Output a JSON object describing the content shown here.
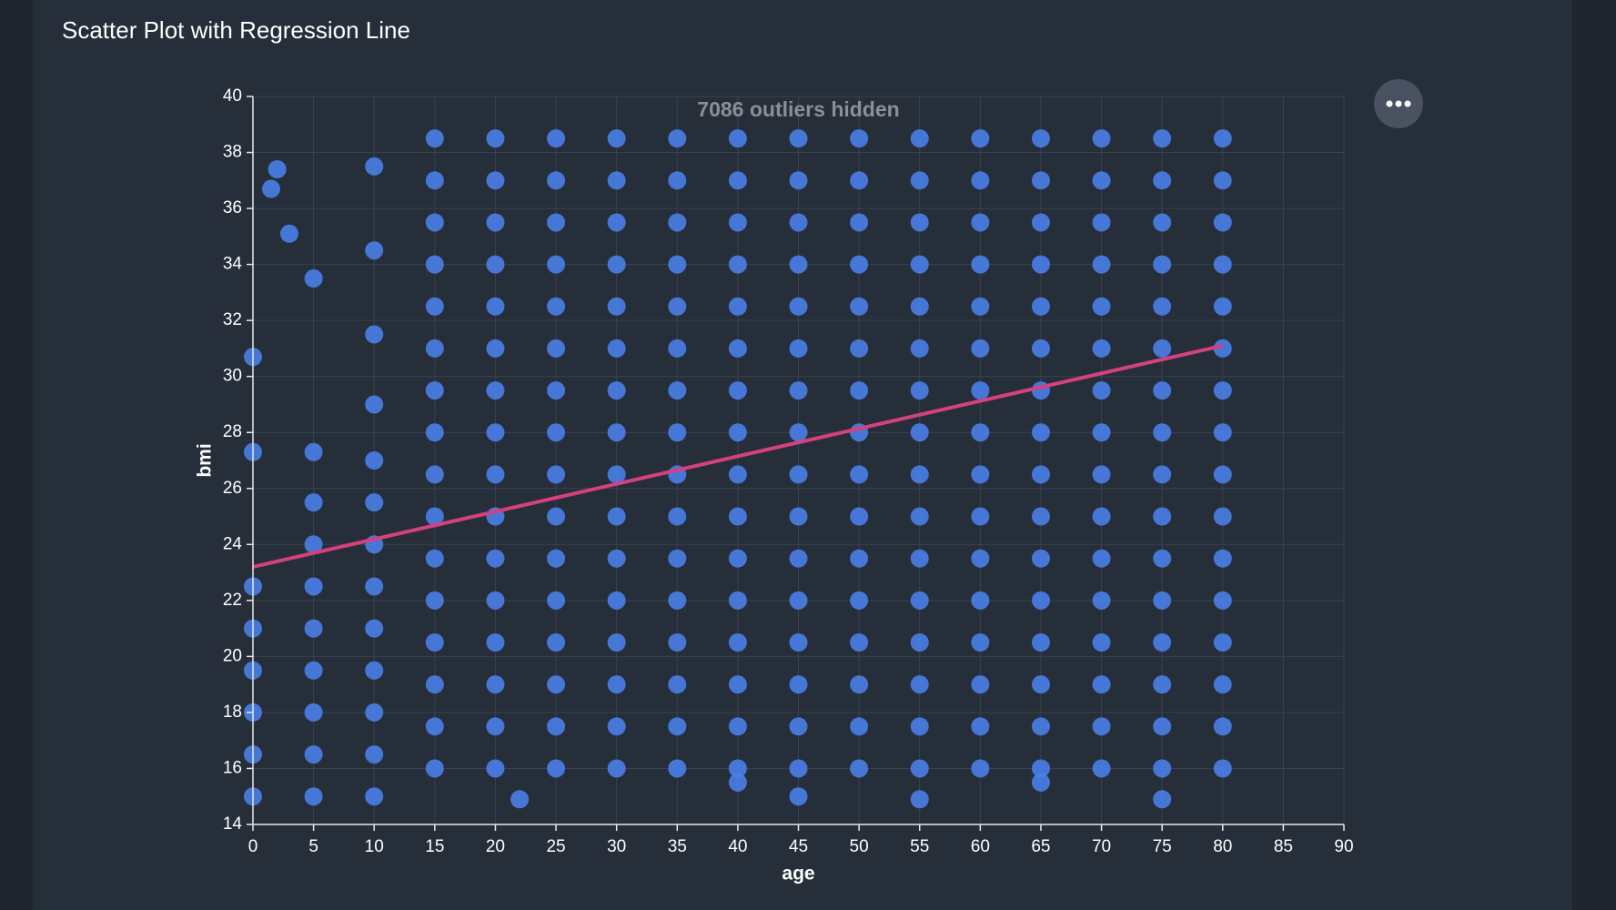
{
  "chart_data": {
    "type": "scatter",
    "title": "Scatter Plot with Regression Line",
    "annotation": "7086 outliers hidden",
    "xlabel": "age",
    "ylabel": "bmi",
    "xlim": [
      0,
      90
    ],
    "xticks": [
      0,
      5,
      10,
      15,
      20,
      25,
      30,
      35,
      40,
      45,
      50,
      55,
      60,
      65,
      70,
      75,
      80,
      85,
      90
    ],
    "ylim": [
      14,
      40
    ],
    "yticks": [
      14,
      16,
      18,
      20,
      22,
      24,
      26,
      28,
      30,
      32,
      34,
      36,
      38,
      40
    ],
    "grid": true,
    "color": "#4a7fe8",
    "x": [
      0,
      0,
      0,
      0,
      0,
      0,
      0,
      0,
      5,
      5,
      5,
      5,
      5,
      5,
      5,
      5,
      5,
      5,
      10,
      10,
      10,
      10,
      10,
      10,
      10,
      10,
      10,
      10,
      10,
      10,
      10,
      15,
      15,
      15,
      15,
      15,
      15,
      15,
      15,
      15,
      15,
      15,
      15,
      15,
      15,
      15,
      15,
      20,
      20,
      20,
      20,
      20,
      20,
      20,
      20,
      20,
      20,
      20,
      20,
      20,
      20,
      20,
      20,
      25,
      25,
      25,
      25,
      25,
      25,
      25,
      25,
      25,
      25,
      25,
      25,
      25,
      25,
      25,
      25,
      30,
      30,
      30,
      30,
      30,
      30,
      30,
      30,
      30,
      30,
      30,
      30,
      30,
      30,
      30,
      30,
      35,
      35,
      35,
      35,
      35,
      35,
      35,
      35,
      35,
      35,
      35,
      35,
      35,
      35,
      35,
      35,
      40,
      40,
      40,
      40,
      40,
      40,
      40,
      40,
      40,
      40,
      40,
      40,
      40,
      40,
      40,
      40,
      45,
      45,
      45,
      45,
      45,
      45,
      45,
      45,
      45,
      45,
      45,
      45,
      45,
      45,
      45,
      45,
      50,
      50,
      50,
      50,
      50,
      50,
      50,
      50,
      50,
      50,
      50,
      50,
      50,
      50,
      50,
      50,
      55,
      55,
      55,
      55,
      55,
      55,
      55,
      55,
      55,
      55,
      55,
      55,
      55,
      55,
      55,
      55,
      60,
      60,
      60,
      60,
      60,
      60,
      60,
      60,
      60,
      60,
      60,
      60,
      60,
      60,
      60,
      60,
      65,
      65,
      65,
      65,
      65,
      65,
      65,
      65,
      65,
      65,
      65,
      65,
      65,
      65,
      65,
      65,
      70,
      70,
      70,
      70,
      70,
      70,
      70,
      70,
      70,
      70,
      70,
      70,
      70,
      70,
      70,
      70,
      75,
      75,
      75,
      75,
      75,
      75,
      75,
      75,
      75,
      75,
      75,
      75,
      75,
      75,
      75,
      75,
      80,
      80,
      80,
      80,
      80,
      80,
      80,
      80,
      80,
      80,
      80,
      80,
      80,
      80,
      80,
      80,
      2,
      1.5,
      3,
      22,
      45,
      55,
      75,
      40,
      65
    ],
    "values": [
      15,
      16.5,
      18,
      19.5,
      21,
      22.5,
      27.3,
      30.7,
      15,
      16.5,
      18,
      19.5,
      21,
      22.5,
      24,
      25.5,
      27.3,
      33.5,
      15,
      16.5,
      18,
      19.5,
      21,
      22.5,
      24,
      25.5,
      27,
      29,
      31.5,
      34.5,
      37.5,
      16,
      17.5,
      19,
      20.5,
      22,
      23.5,
      25,
      26.5,
      28,
      29.5,
      31,
      32.5,
      34,
      35.5,
      37,
      38.5,
      16,
      17.5,
      19,
      20.5,
      22,
      23.5,
      25,
      26.5,
      28,
      29.5,
      31,
      32.5,
      34,
      35.5,
      37,
      38.5,
      16,
      17.5,
      19,
      20.5,
      22,
      23.5,
      25,
      26.5,
      28,
      29.5,
      31,
      32.5,
      34,
      35.5,
      37,
      38.5,
      16,
      17.5,
      19,
      20.5,
      22,
      23.5,
      25,
      26.5,
      28,
      29.5,
      31,
      32.5,
      34,
      35.5,
      37,
      38.5,
      16,
      17.5,
      19,
      20.5,
      22,
      23.5,
      25,
      26.5,
      28,
      29.5,
      31,
      32.5,
      34,
      35.5,
      37,
      38.5,
      16,
      17.5,
      19,
      20.5,
      22,
      23.5,
      25,
      26.5,
      28,
      29.5,
      31,
      32.5,
      34,
      35.5,
      37,
      38.5,
      16,
      17.5,
      19,
      20.5,
      22,
      23.5,
      25,
      26.5,
      28,
      29.5,
      31,
      32.5,
      34,
      35.5,
      37,
      38.5,
      16,
      17.5,
      19,
      20.5,
      22,
      23.5,
      25,
      26.5,
      28,
      29.5,
      31,
      32.5,
      34,
      35.5,
      37,
      38.5,
      16,
      17.5,
      19,
      20.5,
      22,
      23.5,
      25,
      26.5,
      28,
      29.5,
      31,
      32.5,
      34,
      35.5,
      37,
      38.5,
      16,
      17.5,
      19,
      20.5,
      22,
      23.5,
      25,
      26.5,
      28,
      29.5,
      31,
      32.5,
      34,
      35.5,
      37,
      38.5,
      16,
      17.5,
      19,
      20.5,
      22,
      23.5,
      25,
      26.5,
      28,
      29.5,
      31,
      32.5,
      34,
      35.5,
      37,
      38.5,
      16,
      17.5,
      19,
      20.5,
      22,
      23.5,
      25,
      26.5,
      28,
      29.5,
      31,
      32.5,
      34,
      35.5,
      37,
      38.5,
      16,
      17.5,
      19,
      20.5,
      22,
      23.5,
      25,
      26.5,
      28,
      29.5,
      31,
      32.5,
      34,
      35.5,
      37,
      38.5,
      16,
      17.5,
      19,
      20.5,
      22,
      23.5,
      25,
      26.5,
      28,
      29.5,
      31,
      32.5,
      34,
      35.5,
      37,
      38.5,
      37.4,
      36.7,
      35.1,
      14.9,
      15,
      14.9,
      14.9,
      15.5,
      15.5
    ],
    "regression": {
      "x": [
        0,
        80
      ],
      "values": [
        23.2,
        31.1
      ],
      "color": "#d6407f"
    }
  }
}
